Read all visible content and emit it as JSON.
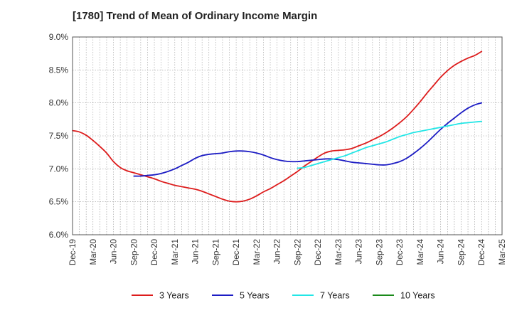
{
  "chart_data": {
    "type": "line",
    "title": "[1780]  Trend of Mean of Ordinary Income Margin",
    "x_ticks": [
      "Dec-19",
      "Mar-20",
      "Jun-20",
      "Sep-20",
      "Dec-20",
      "Mar-21",
      "Jun-21",
      "Sep-21",
      "Dec-21",
      "Mar-22",
      "Jun-22",
      "Sep-22",
      "Dec-22",
      "Mar-23",
      "Jun-23",
      "Sep-23",
      "Dec-23",
      "Mar-24",
      "Jun-24",
      "Sep-24",
      "Dec-24",
      "Mar-25"
    ],
    "y_ticks": [
      "6.0%",
      "6.5%",
      "7.0%",
      "7.5%",
      "8.0%",
      "8.5%",
      "9.0%"
    ],
    "ylim": [
      6.0,
      9.0
    ],
    "grid": true,
    "legend_position": "bottom",
    "series": [
      {
        "name": "3 Years",
        "color": "#dd1c1c",
        "values": [
          [
            "Dec-19",
            7.58
          ],
          [
            "Jan-20",
            7.56
          ],
          [
            "Feb-20",
            7.51
          ],
          [
            "Mar-20",
            7.43
          ],
          [
            "Apr-20",
            7.34
          ],
          [
            "May-20",
            7.24
          ],
          [
            "Jun-20",
            7.11
          ],
          [
            "Jul-20",
            7.02
          ],
          [
            "Aug-20",
            6.97
          ],
          [
            "Sep-20",
            6.94
          ],
          [
            "Oct-20",
            6.91
          ],
          [
            "Nov-20",
            6.88
          ],
          [
            "Dec-20",
            6.85
          ],
          [
            "Jan-21",
            6.81
          ],
          [
            "Feb-21",
            6.78
          ],
          [
            "Mar-21",
            6.75
          ],
          [
            "Apr-21",
            6.73
          ],
          [
            "May-21",
            6.71
          ],
          [
            "Jun-21",
            6.69
          ],
          [
            "Jul-21",
            6.66
          ],
          [
            "Aug-21",
            6.62
          ],
          [
            "Sep-21",
            6.58
          ],
          [
            "Oct-21",
            6.54
          ],
          [
            "Nov-21",
            6.51
          ],
          [
            "Dec-21",
            6.5
          ],
          [
            "Jan-22",
            6.51
          ],
          [
            "Feb-22",
            6.54
          ],
          [
            "Mar-22",
            6.59
          ],
          [
            "Apr-22",
            6.65
          ],
          [
            "May-22",
            6.7
          ],
          [
            "Jun-22",
            6.76
          ],
          [
            "Jul-22",
            6.82
          ],
          [
            "Aug-22",
            6.89
          ],
          [
            "Sep-22",
            6.96
          ],
          [
            "Oct-22",
            7.04
          ],
          [
            "Nov-22",
            7.11
          ],
          [
            "Dec-22",
            7.18
          ],
          [
            "Jan-23",
            7.24
          ],
          [
            "Feb-23",
            7.27
          ],
          [
            "Mar-23",
            7.28
          ],
          [
            "Apr-23",
            7.29
          ],
          [
            "May-23",
            7.31
          ],
          [
            "Jun-23",
            7.35
          ],
          [
            "Jul-23",
            7.39
          ],
          [
            "Aug-23",
            7.44
          ],
          [
            "Sep-23",
            7.49
          ],
          [
            "Oct-23",
            7.55
          ],
          [
            "Nov-23",
            7.62
          ],
          [
            "Dec-23",
            7.7
          ],
          [
            "Jan-24",
            7.79
          ],
          [
            "Feb-24",
            7.9
          ],
          [
            "Mar-24",
            8.02
          ],
          [
            "Apr-24",
            8.15
          ],
          [
            "May-24",
            8.27
          ],
          [
            "Jun-24",
            8.39
          ],
          [
            "Jul-24",
            8.49
          ],
          [
            "Aug-24",
            8.57
          ],
          [
            "Sep-24",
            8.63
          ],
          [
            "Oct-24",
            8.68
          ],
          [
            "Nov-24",
            8.72
          ],
          [
            "Dec-24",
            8.78
          ]
        ]
      },
      {
        "name": "5 Years",
        "color": "#1c1cc4",
        "values": [
          [
            "Sep-20",
            6.89
          ],
          [
            "Oct-20",
            6.89
          ],
          [
            "Nov-20",
            6.9
          ],
          [
            "Dec-20",
            6.91
          ],
          [
            "Jan-21",
            6.93
          ],
          [
            "Feb-21",
            6.96
          ],
          [
            "Mar-21",
            7.0
          ],
          [
            "Apr-21",
            7.05
          ],
          [
            "May-21",
            7.1
          ],
          [
            "Jun-21",
            7.16
          ],
          [
            "Jul-21",
            7.2
          ],
          [
            "Aug-21",
            7.22
          ],
          [
            "Sep-21",
            7.23
          ],
          [
            "Oct-21",
            7.24
          ],
          [
            "Nov-21",
            7.26
          ],
          [
            "Dec-21",
            7.27
          ],
          [
            "Jan-22",
            7.27
          ],
          [
            "Feb-22",
            7.26
          ],
          [
            "Mar-22",
            7.24
          ],
          [
            "Apr-22",
            7.21
          ],
          [
            "May-22",
            7.17
          ],
          [
            "Jun-22",
            7.14
          ],
          [
            "Jul-22",
            7.12
          ],
          [
            "Aug-22",
            7.11
          ],
          [
            "Sep-22",
            7.11
          ],
          [
            "Oct-22",
            7.12
          ],
          [
            "Nov-22",
            7.13
          ],
          [
            "Dec-22",
            7.14
          ],
          [
            "Jan-23",
            7.15
          ],
          [
            "Feb-23",
            7.15
          ],
          [
            "Mar-23",
            7.14
          ],
          [
            "Apr-23",
            7.12
          ],
          [
            "May-23",
            7.1
          ],
          [
            "Jun-23",
            7.09
          ],
          [
            "Jul-23",
            7.08
          ],
          [
            "Aug-23",
            7.07
          ],
          [
            "Sep-23",
            7.06
          ],
          [
            "Oct-23",
            7.06
          ],
          [
            "Nov-23",
            7.08
          ],
          [
            "Dec-23",
            7.11
          ],
          [
            "Jan-24",
            7.16
          ],
          [
            "Feb-24",
            7.23
          ],
          [
            "Mar-24",
            7.31
          ],
          [
            "Apr-24",
            7.4
          ],
          [
            "May-24",
            7.5
          ],
          [
            "Jun-24",
            7.6
          ],
          [
            "Jul-24",
            7.69
          ],
          [
            "Aug-24",
            7.77
          ],
          [
            "Sep-24",
            7.85
          ],
          [
            "Oct-24",
            7.92
          ],
          [
            "Nov-24",
            7.97
          ],
          [
            "Dec-24",
            8.0
          ]
        ]
      },
      {
        "name": "7 Years",
        "color": "#22e6e6",
        "values": [
          [
            "Sep-22",
            7.01
          ],
          [
            "Oct-22",
            7.02
          ],
          [
            "Nov-22",
            7.05
          ],
          [
            "Dec-22",
            7.08
          ],
          [
            "Jan-23",
            7.11
          ],
          [
            "Feb-23",
            7.14
          ],
          [
            "Mar-23",
            7.17
          ],
          [
            "Apr-23",
            7.2
          ],
          [
            "May-23",
            7.24
          ],
          [
            "Jun-23",
            7.28
          ],
          [
            "Jul-23",
            7.32
          ],
          [
            "Aug-23",
            7.35
          ],
          [
            "Sep-23",
            7.38
          ],
          [
            "Oct-23",
            7.41
          ],
          [
            "Nov-23",
            7.45
          ],
          [
            "Dec-23",
            7.49
          ],
          [
            "Jan-24",
            7.52
          ],
          [
            "Feb-24",
            7.55
          ],
          [
            "Mar-24",
            7.57
          ],
          [
            "Apr-24",
            7.59
          ],
          [
            "May-24",
            7.61
          ],
          [
            "Jun-24",
            7.63
          ],
          [
            "Jul-24",
            7.65
          ],
          [
            "Aug-24",
            7.67
          ],
          [
            "Sep-24",
            7.69
          ],
          [
            "Oct-24",
            7.7
          ],
          [
            "Nov-24",
            7.71
          ],
          [
            "Dec-24",
            7.72
          ]
        ]
      },
      {
        "name": "10 Years",
        "color": "#1a8a1a",
        "values": []
      }
    ]
  }
}
